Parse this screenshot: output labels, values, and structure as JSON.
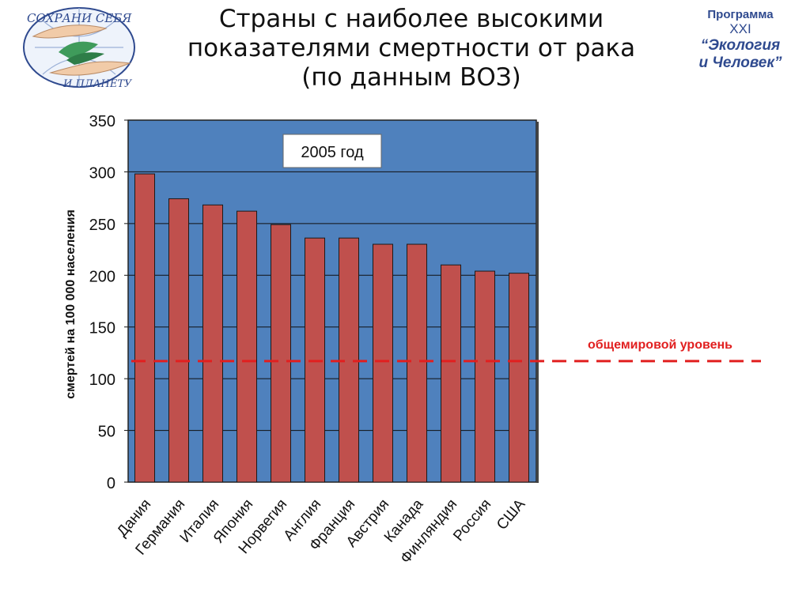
{
  "title": {
    "line1": "Страны с наиболее высокими",
    "line2": "показателями смертности от рака",
    "line3": "(по данным ВОЗ)"
  },
  "logo_left": {
    "text_top": "СОХРАНИ СЕБЯ",
    "text_bottom": "И ПЛАНЕТУ"
  },
  "logo_right": {
    "line1": "Программа",
    "line2": "XXI",
    "line3": "“Экология",
    "line4": "и Человек”"
  },
  "colors": {
    "plot_bg": "#4f81bd",
    "bar": "#c0504d",
    "world_line": "#e11f1f",
    "text": "#111111"
  },
  "chart_data": {
    "type": "bar",
    "year_label": "2005 год",
    "ylabel": "смертей на 100 000 населения",
    "ylim": [
      0,
      350
    ],
    "yticks": [
      0,
      50,
      100,
      150,
      200,
      250,
      300,
      350
    ],
    "grid": true,
    "categories": [
      "Дания",
      "Германия",
      "Италия",
      "Япония",
      "Норвегия",
      "Англия",
      "Франция",
      "Австрия",
      "Канада",
      "Финляндия",
      "Россия",
      "США"
    ],
    "values": [
      298,
      274,
      268,
      262,
      249,
      236,
      236,
      230,
      230,
      210,
      204,
      202
    ],
    "reference_line": {
      "label": "общемировой уровень",
      "value": 117
    }
  }
}
